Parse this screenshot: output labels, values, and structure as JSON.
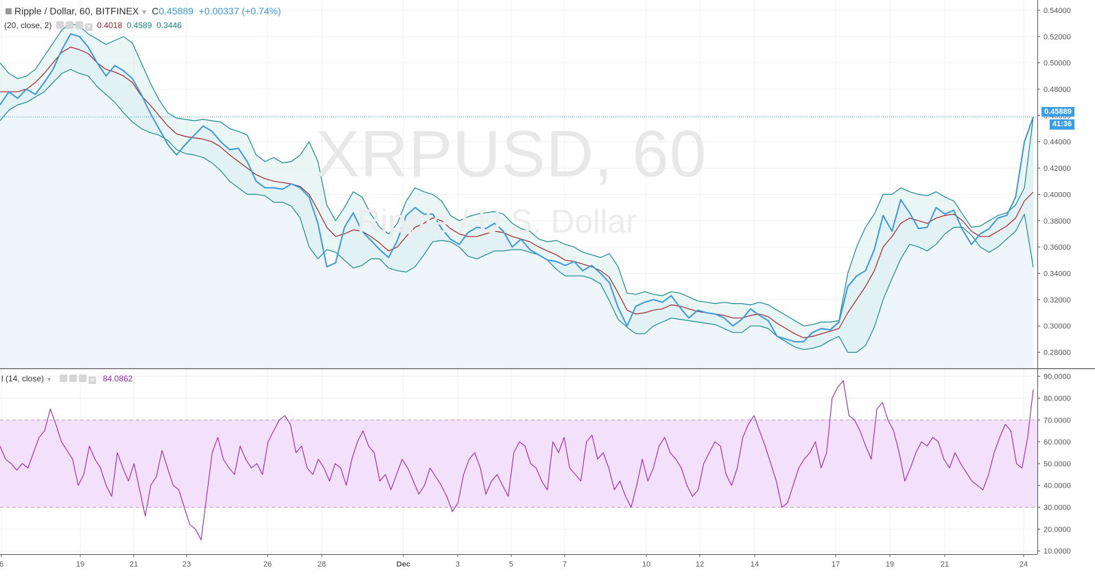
{
  "header": {
    "symbol_title": "Ripple / Dollar, 60, BITFINEX",
    "close_label": "C",
    "close_value": "0.45889",
    "change": "+0.00337 (+0.74%)"
  },
  "bollinger": {
    "label": "(20, close, 2)",
    "middle": "0.4018",
    "upper": "0.4589",
    "lower": "0.3446"
  },
  "rsi": {
    "label": "l (14, close)",
    "value": "84.0862"
  },
  "watermark": {
    "line1": "XRPUSD, 60",
    "line2": "Ripple / U.S. Dollar"
  },
  "price_tag": "0.45889",
  "time_tag": "41:36",
  "colors": {
    "price_line": "#3d9ad8",
    "bands": "#1c8a8e",
    "basis": "#a0242a",
    "rsi": "#9b27b0",
    "rsi_band": "#f3e0fa"
  },
  "chart_data": [
    {
      "type": "line",
      "title": "",
      "y_scale_ticks": [
        "0.54000",
        "0.52000",
        "0.50000",
        "0.48000",
        "0.46000",
        "0.44000",
        "0.42000",
        "0.40000",
        "0.38000",
        "0.36000",
        "0.34000",
        "0.32000",
        "0.30000",
        "0.28000"
      ],
      "ylim": [
        0.2683,
        0.5457
      ],
      "x_tick_labels": [
        "6",
        "19",
        "21",
        "23",
        "26",
        "28",
        "Dec",
        "3",
        "5",
        "7",
        "10",
        "12",
        "14",
        "17",
        "19",
        "21",
        "24"
      ],
      "series": [
        {
          "role": "close",
          "values": [
            0.468,
            0.478,
            0.473,
            0.48,
            0.476,
            0.485,
            0.495,
            0.51,
            0.522,
            0.52,
            0.512,
            0.5,
            0.49,
            0.498,
            0.494,
            0.488,
            0.476,
            0.462,
            0.45,
            0.438,
            0.43,
            0.438,
            0.445,
            0.452,
            0.448,
            0.44,
            0.434,
            0.435,
            0.425,
            0.41,
            0.405,
            0.405,
            0.404,
            0.408,
            0.405,
            0.398,
            0.378,
            0.345,
            0.348,
            0.375,
            0.386,
            0.372,
            0.365,
            0.358,
            0.352,
            0.365,
            0.384,
            0.39,
            0.385,
            0.385,
            0.374,
            0.366,
            0.362,
            0.371,
            0.375,
            0.374,
            0.378,
            0.372,
            0.36,
            0.366,
            0.358,
            0.354,
            0.35,
            0.349,
            0.346,
            0.349,
            0.342,
            0.346,
            0.34,
            0.333,
            0.314,
            0.3,
            0.315,
            0.318,
            0.32,
            0.318,
            0.323,
            0.314,
            0.306,
            0.312,
            0.31,
            0.309,
            0.306,
            0.3,
            0.305,
            0.313,
            0.308,
            0.304,
            0.292,
            0.29,
            0.288,
            0.288,
            0.295,
            0.298,
            0.297,
            0.303,
            0.33,
            0.338,
            0.342,
            0.358,
            0.384,
            0.372,
            0.396,
            0.386,
            0.374,
            0.375,
            0.39,
            0.385,
            0.388,
            0.373,
            0.362,
            0.37,
            0.374,
            0.382,
            0.384,
            0.398,
            0.44,
            0.45889
          ]
        },
        {
          "role": "basis",
          "values": [
            0.478,
            0.478,
            0.478,
            0.48,
            0.485,
            0.492,
            0.5,
            0.508,
            0.512,
            0.51,
            0.507,
            0.5,
            0.495,
            0.493,
            0.49,
            0.485,
            0.475,
            0.468,
            0.46,
            0.452,
            0.446,
            0.444,
            0.443,
            0.442,
            0.44,
            0.436,
            0.43,
            0.425,
            0.42,
            0.415,
            0.412,
            0.41,
            0.409,
            0.408,
            0.406,
            0.4,
            0.388,
            0.375,
            0.368,
            0.37,
            0.373,
            0.372,
            0.368,
            0.363,
            0.357,
            0.36,
            0.368,
            0.375,
            0.378,
            0.382,
            0.38,
            0.374,
            0.37,
            0.368,
            0.368,
            0.37,
            0.372,
            0.371,
            0.368,
            0.366,
            0.364,
            0.36,
            0.357,
            0.354,
            0.35,
            0.349,
            0.347,
            0.345,
            0.342,
            0.337,
            0.325,
            0.312,
            0.309,
            0.31,
            0.312,
            0.313,
            0.316,
            0.315,
            0.313,
            0.311,
            0.31,
            0.309,
            0.308,
            0.306,
            0.306,
            0.308,
            0.309,
            0.307,
            0.302,
            0.298,
            0.294,
            0.291,
            0.292,
            0.294,
            0.296,
            0.298,
            0.31,
            0.32,
            0.33,
            0.342,
            0.36,
            0.368,
            0.378,
            0.382,
            0.38,
            0.378,
            0.382,
            0.384,
            0.385,
            0.38,
            0.372,
            0.368,
            0.368,
            0.372,
            0.376,
            0.382,
            0.395,
            0.4018
          ]
        },
        {
          "role": "upper",
          "values": [
            0.5,
            0.492,
            0.488,
            0.49,
            0.495,
            0.505,
            0.515,
            0.525,
            0.53,
            0.528,
            0.522,
            0.518,
            0.514,
            0.517,
            0.52,
            0.515,
            0.5,
            0.485,
            0.472,
            0.462,
            0.458,
            0.457,
            0.456,
            0.457,
            0.456,
            0.455,
            0.45,
            0.448,
            0.445,
            0.43,
            0.425,
            0.428,
            0.424,
            0.425,
            0.43,
            0.44,
            0.425,
            0.392,
            0.38,
            0.39,
            0.402,
            0.398,
            0.385,
            0.375,
            0.37,
            0.378,
            0.395,
            0.405,
            0.402,
            0.4,
            0.395,
            0.384,
            0.38,
            0.383,
            0.385,
            0.386,
            0.387,
            0.385,
            0.378,
            0.374,
            0.372,
            0.366,
            0.364,
            0.365,
            0.362,
            0.36,
            0.356,
            0.354,
            0.352,
            0.355,
            0.345,
            0.325,
            0.324,
            0.326,
            0.324,
            0.323,
            0.326,
            0.325,
            0.322,
            0.319,
            0.318,
            0.317,
            0.318,
            0.317,
            0.317,
            0.316,
            0.318,
            0.316,
            0.312,
            0.308,
            0.304,
            0.3,
            0.301,
            0.303,
            0.303,
            0.304,
            0.34,
            0.36,
            0.375,
            0.385,
            0.4,
            0.4,
            0.405,
            0.402,
            0.4,
            0.399,
            0.402,
            0.398,
            0.395,
            0.385,
            0.375,
            0.376,
            0.38,
            0.384,
            0.386,
            0.392,
            0.405,
            0.4589
          ]
        },
        {
          "role": "lower",
          "values": [
            0.456,
            0.464,
            0.468,
            0.47,
            0.474,
            0.478,
            0.485,
            0.492,
            0.495,
            0.492,
            0.49,
            0.482,
            0.476,
            0.47,
            0.462,
            0.455,
            0.45,
            0.447,
            0.445,
            0.441,
            0.434,
            0.431,
            0.43,
            0.428,
            0.424,
            0.418,
            0.41,
            0.405,
            0.4,
            0.4,
            0.399,
            0.394,
            0.394,
            0.391,
            0.382,
            0.36,
            0.351,
            0.358,
            0.356,
            0.35,
            0.344,
            0.346,
            0.351,
            0.351,
            0.344,
            0.342,
            0.341,
            0.345,
            0.354,
            0.364,
            0.365,
            0.364,
            0.36,
            0.353,
            0.351,
            0.354,
            0.357,
            0.357,
            0.358,
            0.358,
            0.356,
            0.354,
            0.35,
            0.343,
            0.338,
            0.338,
            0.338,
            0.336,
            0.332,
            0.319,
            0.305,
            0.299,
            0.294,
            0.294,
            0.3,
            0.303,
            0.306,
            0.305,
            0.304,
            0.303,
            0.302,
            0.301,
            0.298,
            0.295,
            0.295,
            0.3,
            0.3,
            0.298,
            0.292,
            0.288,
            0.284,
            0.282,
            0.283,
            0.285,
            0.289,
            0.292,
            0.28,
            0.28,
            0.285,
            0.299,
            0.32,
            0.336,
            0.351,
            0.362,
            0.36,
            0.357,
            0.362,
            0.37,
            0.375,
            0.375,
            0.369,
            0.36,
            0.356,
            0.36,
            0.366,
            0.372,
            0.385,
            0.3446
          ]
        }
      ]
    },
    {
      "type": "line",
      "title": "",
      "y_scale_ticks": [
        "90.0000",
        "80.0000",
        "70.0000",
        "60.0000",
        "50.0000",
        "40.0000",
        "30.0000",
        "20.0000",
        "10.0000"
      ],
      "ylim": [
        8.5,
        92.7
      ],
      "band": [
        30,
        70
      ],
      "series": [
        {
          "role": "rsi",
          "values": [
            58,
            52,
            50,
            47,
            50,
            48,
            55,
            62,
            65,
            75,
            68,
            60,
            56,
            52,
            40,
            45,
            58,
            52,
            48,
            40,
            35,
            55,
            48,
            42,
            50,
            38,
            26,
            40,
            44,
            56,
            48,
            40,
            38,
            30,
            22,
            20,
            15,
            35,
            55,
            62,
            52,
            48,
            45,
            58,
            52,
            48,
            50,
            45,
            60,
            65,
            70,
            72,
            68,
            55,
            58,
            48,
            45,
            52,
            48,
            42,
            50,
            48,
            40,
            52,
            60,
            65,
            58,
            55,
            42,
            45,
            38,
            45,
            52,
            48,
            42,
            36,
            40,
            48,
            44,
            40,
            35,
            28,
            32,
            45,
            52,
            55,
            48,
            36,
            42,
            45,
            40,
            35,
            55,
            60,
            58,
            50,
            48,
            42,
            38,
            60,
            55,
            62,
            48,
            45,
            42,
            60,
            63,
            52,
            55,
            48,
            38,
            42,
            35,
            30,
            40,
            52,
            42,
            48,
            58,
            62,
            55,
            52,
            48,
            40,
            35,
            38,
            50,
            55,
            60,
            58,
            45,
            40,
            48,
            62,
            68,
            72,
            65,
            58,
            50,
            42,
            30,
            32,
            40,
            48,
            52,
            55,
            60,
            48,
            55,
            80,
            85,
            88,
            72,
            70,
            65,
            58,
            52,
            75,
            78,
            70,
            65,
            55,
            42,
            48,
            55,
            60,
            58,
            62,
            60,
            52,
            48,
            55,
            50,
            46,
            42,
            40,
            38,
            45,
            55,
            62,
            68,
            65,
            50,
            48,
            62,
            84
          ]
        }
      ]
    }
  ]
}
